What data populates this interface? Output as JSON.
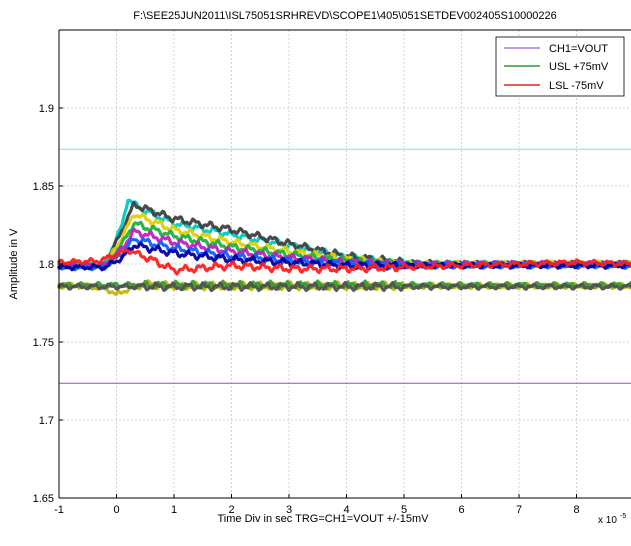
{
  "chart_data": {
    "type": "line",
    "title": "F:\\SEE25JUN2011\\ISL75051SRHREVD\\SCOPE1\\405\\051SETDEV002405S10000226",
    "xlabel": "Time Div in sec TRG=CH1=VOUT +/-15mV",
    "ylabel": "Amplitude in V",
    "x_exponent_label": "x 10",
    "x_exponent": "-5",
    "xlim": [
      -1,
      9
    ],
    "ylim": [
      1.65,
      1.95
    ],
    "x_ticks": [
      "-1",
      "0",
      "1",
      "2",
      "3",
      "4",
      "5",
      "6",
      "7",
      "8"
    ],
    "y_ticks": [
      "1.65",
      "1.7",
      "1.75",
      "1.8",
      "1.85",
      "1.9"
    ],
    "grid": true,
    "legend_position": "top-right",
    "series": [
      {
        "name": "CH1=VOUT",
        "color": "#a77fd6",
        "values": []
      },
      {
        "name": "USL +75mV",
        "color": "#2e9a3d",
        "values": [
          [
            -1,
            1.8735
          ],
          [
            9,
            1.8735
          ]
        ],
        "line_color": "#7fe3e3"
      },
      {
        "name": "LSL -75mV",
        "color": "#e02525",
        "values": [
          [
            -1,
            1.7235
          ],
          [
            9,
            1.7235
          ]
        ],
        "line_color": "#a64ac9"
      }
    ],
    "waveforms": [
      {
        "color": "#00c8c8",
        "x": [
          -1,
          -0.2,
          0.1,
          0.2,
          0.4,
          1,
          2,
          3,
          4,
          5,
          6,
          7,
          8,
          9
        ],
        "y": [
          1.8,
          1.8,
          1.825,
          1.842,
          1.836,
          1.826,
          1.819,
          1.812,
          1.804,
          1.8,
          1.8,
          1.8,
          1.8,
          1.8
        ]
      },
      {
        "color": "#404040",
        "x": [
          -1,
          -0.2,
          0.1,
          0.3,
          1,
          2,
          3,
          4,
          5,
          6,
          7,
          8,
          9
        ],
        "y": [
          1.799,
          1.799,
          1.822,
          1.838,
          1.829,
          1.822,
          1.813,
          1.805,
          1.801,
          1.8,
          1.8,
          1.8,
          1.8
        ]
      },
      {
        "color": "#e0d000",
        "x": [
          -1,
          -0.2,
          0.1,
          0.3,
          1,
          2,
          3,
          4,
          5,
          6,
          7,
          8,
          9
        ],
        "y": [
          1.799,
          1.799,
          1.817,
          1.832,
          1.822,
          1.814,
          1.808,
          1.803,
          1.8,
          1.8,
          1.8,
          1.8,
          1.8
        ]
      },
      {
        "color": "#20b040",
        "x": [
          -1,
          -0.2,
          0.1,
          0.3,
          1,
          2,
          3,
          4,
          5,
          6,
          7,
          8,
          9
        ],
        "y": [
          1.799,
          1.799,
          1.813,
          1.826,
          1.818,
          1.811,
          1.806,
          1.802,
          1.8,
          1.8,
          1.8,
          1.8,
          1.8
        ]
      },
      {
        "color": "#c020c0",
        "x": [
          -1,
          -0.2,
          0.1,
          0.3,
          1,
          2,
          3,
          4,
          5,
          6,
          7,
          8,
          9
        ],
        "y": [
          1.799,
          1.799,
          1.81,
          1.821,
          1.814,
          1.808,
          1.804,
          1.801,
          1.8,
          1.8,
          1.8,
          1.8,
          1.8
        ]
      },
      {
        "color": "#1060ff",
        "x": [
          -1,
          -0.2,
          0.1,
          0.3,
          1,
          2,
          3,
          4,
          5,
          6,
          7,
          8,
          9
        ],
        "y": [
          1.798,
          1.798,
          1.807,
          1.816,
          1.81,
          1.805,
          1.802,
          1.8,
          1.799,
          1.799,
          1.799,
          1.799,
          1.799
        ]
      },
      {
        "color": "#0000a0",
        "x": [
          -1,
          -0.2,
          0.1,
          0.3,
          1,
          2,
          3,
          4,
          5,
          6,
          7,
          8,
          9
        ],
        "y": [
          1.798,
          1.798,
          1.804,
          1.812,
          1.807,
          1.803,
          1.801,
          1.799,
          1.799,
          1.799,
          1.799,
          1.799,
          1.799
        ]
      },
      {
        "color": "#ff2020",
        "x": [
          -1,
          -0.3,
          0,
          0.2,
          0.6,
          1,
          2,
          3,
          4,
          5,
          6,
          7,
          8,
          9
        ],
        "y": [
          1.801,
          1.802,
          1.806,
          1.809,
          1.803,
          1.796,
          1.799,
          1.797,
          1.797,
          1.798,
          1.799,
          1.8,
          1.801,
          1.8
        ]
      },
      {
        "color": "#c8b400",
        "x": [
          -1,
          -0.5,
          -0.1,
          0,
          0.2,
          0.5,
          1,
          2,
          3,
          4,
          5,
          6,
          7,
          8,
          9
        ],
        "y": [
          1.786,
          1.786,
          1.783,
          1.78,
          1.784,
          1.787,
          1.786,
          1.786,
          1.786,
          1.786,
          1.786,
          1.786,
          1.786,
          1.786,
          1.786
        ]
      },
      {
        "color": "#30a030",
        "x": [
          -1,
          9
        ],
        "y": [
          1.7865,
          1.7865
        ]
      },
      {
        "color": "#505050",
        "x": [
          -1,
          9
        ],
        "y": [
          1.7855,
          1.7855
        ]
      }
    ]
  }
}
